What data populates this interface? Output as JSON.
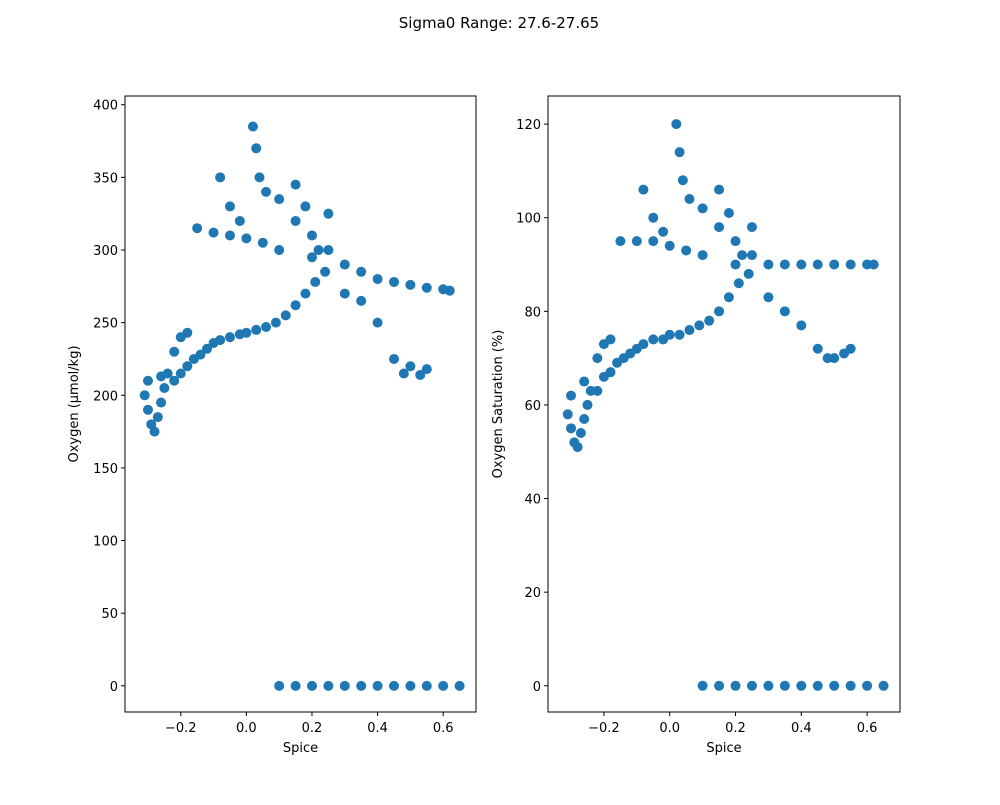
{
  "figure": {
    "title": "Sigma0 Range: 27.6-27.65"
  },
  "style": {
    "marker_color": "#1f77b4",
    "axes_color": "#000000",
    "background": "#ffffff"
  },
  "chart_data": [
    {
      "type": "scatter",
      "title": "",
      "xlabel": "Spice",
      "ylabel": "Oxygen (µmol/kg)",
      "xlim": [
        -0.37,
        0.7
      ],
      "ylim": [
        -18,
        406
      ],
      "xticks": [
        -0.2,
        0.0,
        0.2,
        0.4,
        0.6
      ],
      "yticks": [
        0,
        50,
        100,
        150,
        200,
        250,
        300,
        350,
        400
      ],
      "xtick_labels": [
        "−0.2",
        "0.0",
        "0.2",
        "0.4",
        "0.6"
      ],
      "ytick_labels": [
        "0",
        "50",
        "100",
        "150",
        "200",
        "250",
        "300",
        "350",
        "400"
      ],
      "grid": false,
      "legend": "none",
      "series": [
        {
          "color": "#1f77b4",
          "points": [
            [
              -0.3,
              190
            ],
            [
              -0.31,
              200
            ],
            [
              -0.3,
              210
            ],
            [
              -0.29,
              180
            ],
            [
              -0.28,
              175
            ],
            [
              -0.27,
              185
            ],
            [
              -0.26,
              195
            ],
            [
              -0.25,
              205
            ],
            [
              -0.24,
              215
            ],
            [
              -0.22,
              210
            ],
            [
              -0.2,
              215
            ],
            [
              -0.18,
              220
            ],
            [
              -0.16,
              225
            ],
            [
              -0.14,
              228
            ],
            [
              -0.12,
              232
            ],
            [
              -0.1,
              236
            ],
            [
              -0.08,
              238
            ],
            [
              -0.05,
              240
            ],
            [
              -0.02,
              242
            ],
            [
              0.0,
              243
            ],
            [
              0.03,
              245
            ],
            [
              0.06,
              247
            ],
            [
              0.09,
              250
            ],
            [
              0.12,
              255
            ],
            [
              0.15,
              262
            ],
            [
              0.18,
              270
            ],
            [
              0.21,
              278
            ],
            [
              0.24,
              285
            ],
            [
              0.2,
              295
            ],
            [
              0.25,
              300
            ],
            [
              0.3,
              290
            ],
            [
              0.35,
              285
            ],
            [
              0.4,
              280
            ],
            [
              0.45,
              278
            ],
            [
              0.5,
              276
            ],
            [
              0.55,
              274
            ],
            [
              0.6,
              273
            ],
            [
              0.62,
              272
            ],
            [
              0.1,
              300
            ],
            [
              0.05,
              305
            ],
            [
              0.0,
              308
            ],
            [
              -0.05,
              310
            ],
            [
              -0.1,
              312
            ],
            [
              -0.15,
              315
            ],
            [
              0.15,
              320
            ],
            [
              0.18,
              330
            ],
            [
              0.2,
              310
            ],
            [
              0.22,
              300
            ],
            [
              0.3,
              270
            ],
            [
              0.35,
              265
            ],
            [
              0.4,
              250
            ],
            [
              0.45,
              225
            ],
            [
              0.5,
              220
            ],
            [
              0.55,
              218
            ],
            [
              0.48,
              215
            ],
            [
              0.53,
              214
            ],
            [
              -0.08,
              350
            ],
            [
              -0.05,
              330
            ],
            [
              -0.02,
              320
            ],
            [
              0.02,
              385
            ],
            [
              0.03,
              370
            ],
            [
              0.04,
              350
            ],
            [
              0.06,
              340
            ],
            [
              0.1,
              335
            ],
            [
              0.15,
              345
            ],
            [
              0.25,
              325
            ],
            [
              -0.2,
              240
            ],
            [
              -0.22,
              230
            ],
            [
              -0.18,
              243
            ],
            [
              -0.26,
              213
            ],
            [
              0.1,
              0
            ],
            [
              0.15,
              0
            ],
            [
              0.2,
              0
            ],
            [
              0.25,
              0
            ],
            [
              0.3,
              0
            ],
            [
              0.35,
              0
            ],
            [
              0.4,
              0
            ],
            [
              0.45,
              0
            ],
            [
              0.5,
              0
            ],
            [
              0.55,
              0
            ],
            [
              0.6,
              0
            ],
            [
              0.65,
              0
            ]
          ]
        }
      ]
    },
    {
      "type": "scatter",
      "title": "",
      "xlabel": "Spice",
      "ylabel": "Oxygen Saturation (%)",
      "xlim": [
        -0.37,
        0.7
      ],
      "ylim": [
        -5.6,
        126
      ],
      "xticks": [
        -0.2,
        0.0,
        0.2,
        0.4,
        0.6
      ],
      "yticks": [
        0,
        20,
        40,
        60,
        80,
        100,
        120
      ],
      "xtick_labels": [
        "−0.2",
        "0.0",
        "0.2",
        "0.4",
        "0.6"
      ],
      "ytick_labels": [
        "0",
        "20",
        "40",
        "60",
        "80",
        "100",
        "120"
      ],
      "grid": false,
      "legend": "none",
      "series": [
        {
          "color": "#1f77b4",
          "points": [
            [
              -0.3,
              55
            ],
            [
              -0.31,
              58
            ],
            [
              -0.3,
              62
            ],
            [
              -0.29,
              52
            ],
            [
              -0.28,
              51
            ],
            [
              -0.27,
              54
            ],
            [
              -0.26,
              57
            ],
            [
              -0.25,
              60
            ],
            [
              -0.24,
              63
            ],
            [
              -0.22,
              63
            ],
            [
              -0.2,
              66
            ],
            [
              -0.18,
              67
            ],
            [
              -0.16,
              69
            ],
            [
              -0.14,
              70
            ],
            [
              -0.12,
              71
            ],
            [
              -0.1,
              72
            ],
            [
              -0.08,
              73
            ],
            [
              -0.05,
              74
            ],
            [
              -0.02,
              74
            ],
            [
              0.0,
              75
            ],
            [
              0.03,
              75
            ],
            [
              0.06,
              76
            ],
            [
              0.09,
              77
            ],
            [
              0.12,
              78
            ],
            [
              0.15,
              80
            ],
            [
              0.18,
              83
            ],
            [
              0.21,
              86
            ],
            [
              0.24,
              88
            ],
            [
              0.2,
              90
            ],
            [
              0.25,
              92
            ],
            [
              0.3,
              90
            ],
            [
              0.35,
              90
            ],
            [
              0.4,
              90
            ],
            [
              0.45,
              90
            ],
            [
              0.5,
              90
            ],
            [
              0.55,
              90
            ],
            [
              0.6,
              90
            ],
            [
              0.62,
              90
            ],
            [
              0.1,
              92
            ],
            [
              0.05,
              93
            ],
            [
              0.0,
              94
            ],
            [
              -0.05,
              95
            ],
            [
              -0.1,
              95
            ],
            [
              -0.15,
              95
            ],
            [
              0.15,
              98
            ],
            [
              0.18,
              101
            ],
            [
              0.2,
              95
            ],
            [
              0.22,
              92
            ],
            [
              0.3,
              83
            ],
            [
              0.35,
              80
            ],
            [
              0.4,
              77
            ],
            [
              0.45,
              72
            ],
            [
              0.5,
              70
            ],
            [
              0.55,
              72
            ],
            [
              0.48,
              70
            ],
            [
              0.53,
              71
            ],
            [
              -0.08,
              106
            ],
            [
              -0.05,
              100
            ],
            [
              -0.02,
              97
            ],
            [
              0.02,
              120
            ],
            [
              0.03,
              114
            ],
            [
              0.04,
              108
            ],
            [
              0.06,
              104
            ],
            [
              0.1,
              102
            ],
            [
              0.15,
              106
            ],
            [
              0.25,
              98
            ],
            [
              -0.2,
              73
            ],
            [
              -0.22,
              70
            ],
            [
              -0.18,
              74
            ],
            [
              -0.26,
              65
            ],
            [
              0.1,
              0
            ],
            [
              0.15,
              0
            ],
            [
              0.2,
              0
            ],
            [
              0.25,
              0
            ],
            [
              0.3,
              0
            ],
            [
              0.35,
              0
            ],
            [
              0.4,
              0
            ],
            [
              0.45,
              0
            ],
            [
              0.5,
              0
            ],
            [
              0.55,
              0
            ],
            [
              0.6,
              0
            ],
            [
              0.65,
              0
            ]
          ]
        }
      ]
    }
  ]
}
